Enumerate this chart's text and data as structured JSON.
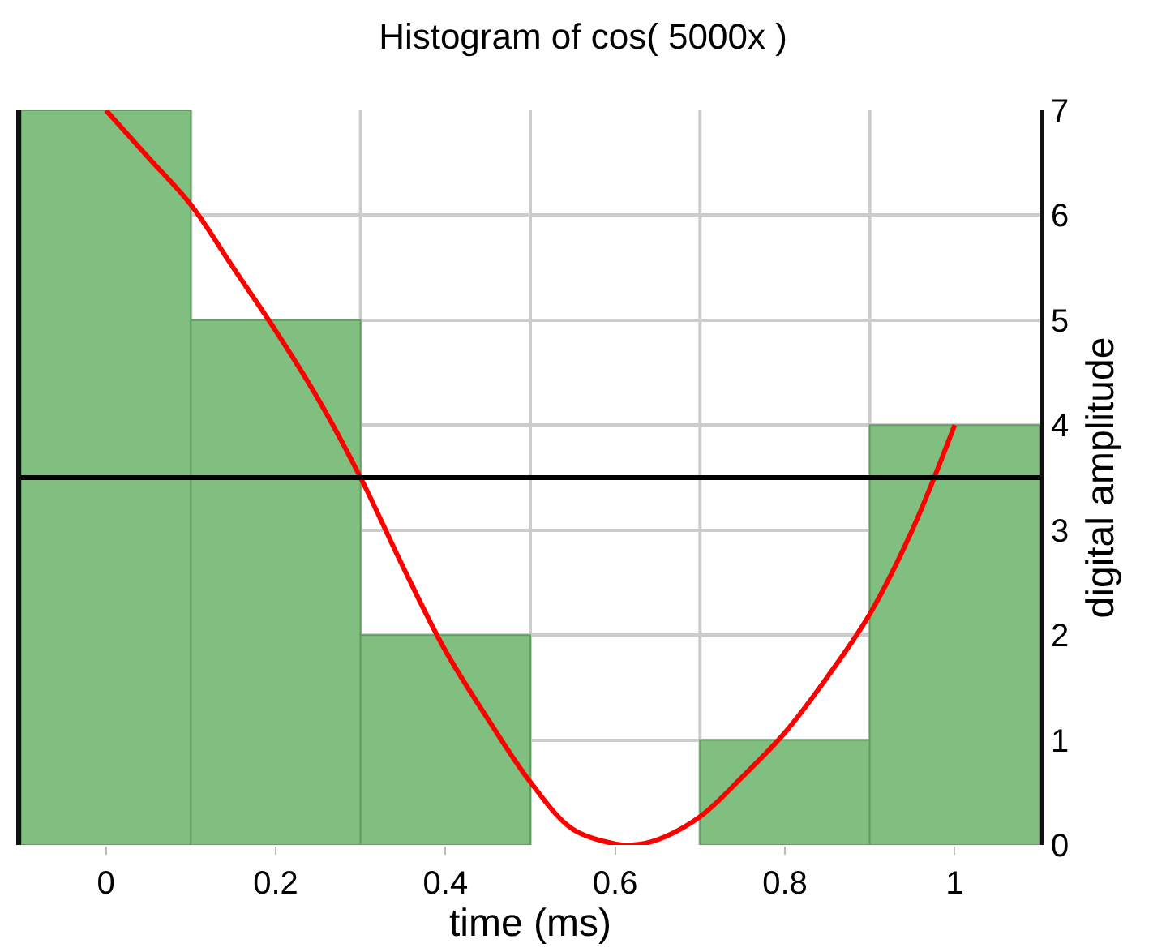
{
  "chart_data": {
    "type": "histogram",
    "title": "Histogram of cos( 5000x )",
    "xlabel": "time (ms)",
    "ylabel": "digital amplitude",
    "bins": [
      -0.1,
      0.1,
      0.3,
      0.5,
      0.7,
      0.9,
      1.1
    ],
    "values": [
      7,
      5,
      2,
      0,
      1,
      4
    ],
    "color": "#80bf80",
    "series": [
      {
        "type": "line",
        "color": "#ff0000",
        "x": [
          0,
          0.05,
          0.1,
          0.15,
          0.2,
          0.25,
          0.3,
          0.35,
          0.4,
          0.45,
          0.5,
          0.55,
          0.6,
          0.62,
          0.65,
          0.7,
          0.75,
          0.8,
          0.85,
          0.9,
          0.95,
          1
        ],
        "values": [
          7,
          6.55,
          6.1,
          5.5,
          4.9,
          4.25,
          3.5,
          2.65,
          1.85,
          1.2,
          0.6,
          0.15,
          0.01,
          0,
          0.05,
          0.27,
          0.65,
          1.07,
          1.6,
          2.2,
          3,
          4
        ]
      }
    ],
    "ref_lines": [
      {
        "axis": "y",
        "value": 3.5,
        "color": "#000000"
      }
    ],
    "xlim": [
      -0.1,
      1.1
    ],
    "xticks": [
      0,
      0.2,
      0.4,
      0.6,
      0.8,
      1
    ],
    "ylim": [
      0,
      7
    ],
    "yticks": [
      0,
      1,
      2,
      3,
      4,
      5,
      6,
      7
    ],
    "grid": true
  }
}
